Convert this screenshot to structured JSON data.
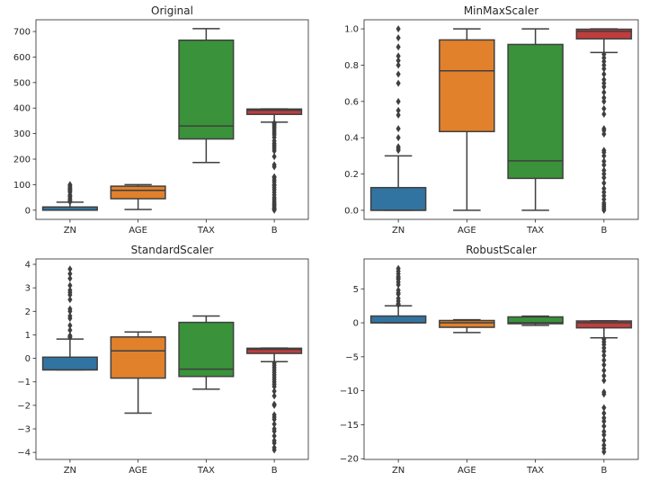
{
  "chart_data": [
    {
      "type": "box",
      "title": "Original",
      "categories": [
        "ZN",
        "AGE",
        "TAX",
        "B"
      ],
      "ylim": [
        -36,
        746
      ],
      "yticks": [
        0,
        100,
        200,
        300,
        400,
        500,
        600,
        700
      ],
      "ytick_labels": [
        "0",
        "100",
        "200",
        "300",
        "400",
        "500",
        "600",
        "700"
      ],
      "grid": false,
      "boxes": [
        {
          "whislo": 0,
          "q1": 0,
          "med": 0,
          "q3": 12.5,
          "whishi": 31.25,
          "outliers": [
            33,
            34,
            35,
            40,
            45,
            52.5,
            55,
            60,
            70,
            75,
            80,
            82.5,
            85,
            90,
            95,
            100
          ]
        },
        {
          "whislo": 2.9,
          "q1": 45,
          "med": 77.5,
          "q3": 94,
          "whishi": 100,
          "outliers": []
        },
        {
          "whislo": 187,
          "q1": 279,
          "med": 330,
          "q3": 666,
          "whishi": 711,
          "outliers": []
        },
        {
          "whislo": 344.9,
          "q1": 375.4,
          "med": 391.4,
          "q3": 396.2,
          "whishi": 396.9,
          "outliers": [
            0.3,
            3.5,
            7,
            10,
            17,
            22,
            28,
            35,
            43,
            50,
            60,
            70,
            80,
            88,
            97,
            100,
            110,
            118,
            127,
            131,
            170,
            178,
            210,
            232,
            240,
            248,
            255,
            262,
            272,
            285,
            295,
            302,
            310,
            318,
            325,
            332,
            338,
            342
          ]
        }
      ]
    },
    {
      "type": "box",
      "title": "MinMaxScaler",
      "categories": [
        "ZN",
        "AGE",
        "TAX",
        "B"
      ],
      "ylim": [
        -0.05,
        1.05
      ],
      "yticks": [
        0,
        0.2,
        0.4,
        0.6,
        0.8,
        1.0
      ],
      "ytick_labels": [
        "0.0",
        "0.2",
        "0.4",
        "0.6",
        "0.8",
        "1.0"
      ],
      "grid": false,
      "boxes": [
        {
          "whislo": 0,
          "q1": 0,
          "med": 0,
          "q3": 0.125,
          "whishi": 0.3,
          "outliers": [
            0.33,
            0.34,
            0.35,
            0.4,
            0.45,
            0.525,
            0.55,
            0.6,
            0.7,
            0.75,
            0.8,
            0.825,
            0.85,
            0.9,
            0.95,
            1.0
          ]
        },
        {
          "whislo": 0,
          "q1": 0.434,
          "med": 0.769,
          "q3": 0.939,
          "whishi": 1.0,
          "outliers": []
        },
        {
          "whislo": 0,
          "q1": 0.176,
          "med": 0.273,
          "q3": 0.914,
          "whishi": 1.0,
          "outliers": []
        },
        {
          "whislo": 0.87,
          "q1": 0.945,
          "med": 0.986,
          "q3": 0.998,
          "whishi": 1.0,
          "outliers": [
            0,
            0.01,
            0.02,
            0.03,
            0.04,
            0.06,
            0.08,
            0.1,
            0.12,
            0.15,
            0.18,
            0.2,
            0.22,
            0.25,
            0.27,
            0.3,
            0.32,
            0.33,
            0.42,
            0.44,
            0.45,
            0.53,
            0.56,
            0.6,
            0.62,
            0.65,
            0.68,
            0.7,
            0.72,
            0.75,
            0.78,
            0.8,
            0.82,
            0.84,
            0.86
          ]
        }
      ]
    },
    {
      "type": "box",
      "title": "StandardScaler",
      "categories": [
        "ZN",
        "AGE",
        "TAX",
        "B"
      ],
      "ylim": [
        -4.3,
        4.23
      ],
      "yticks": [
        -4,
        -3,
        -2,
        -1,
        0,
        1,
        2,
        3,
        4
      ],
      "ytick_labels": [
        "−4",
        "−3",
        "−2",
        "−1",
        "0",
        "1",
        "2",
        "3",
        "4"
      ],
      "grid": false,
      "boxes": [
        {
          "whislo": -0.49,
          "q1": -0.49,
          "med": -0.49,
          "q3": 0.05,
          "whishi": 0.82,
          "outliers": [
            0.89,
            0.93,
            0.97,
            1.2,
            1.4,
            1.7,
            1.8,
            2.0,
            2.1,
            2.5,
            2.7,
            2.8,
            2.9,
            3.1,
            3.4,
            3.6,
            3.8
          ]
        },
        {
          "whislo": -2.33,
          "q1": -0.84,
          "med": 0.32,
          "q3": 0.91,
          "whishi": 1.12,
          "outliers": []
        },
        {
          "whislo": -1.31,
          "q1": -0.77,
          "med": -0.46,
          "q3": 1.53,
          "whishi": 1.8,
          "outliers": []
        },
        {
          "whislo": -0.14,
          "q1": 0.21,
          "med": 0.38,
          "q3": 0.43,
          "whishi": 0.44,
          "outliers": [
            -3.9,
            -3.8,
            -3.6,
            -3.5,
            -3.3,
            -3.1,
            -3.0,
            -2.8,
            -2.6,
            -2.5,
            -2.4,
            -2.0,
            -1.95,
            -1.6,
            -1.4,
            -1.2,
            -1.1,
            -1.0,
            -0.9,
            -0.8,
            -0.7,
            -0.6,
            -0.5,
            -0.4,
            -0.3,
            -0.2
          ]
        }
      ]
    },
    {
      "type": "box",
      "title": "RobustScaler",
      "categories": [
        "ZN",
        "AGE",
        "TAX",
        "B"
      ],
      "ylim": [
        -20.1,
        9.4
      ],
      "yticks": [
        -20,
        -15,
        -10,
        -5,
        0,
        5
      ],
      "ytick_labels": [
        "−20",
        "−15",
        "−10",
        "−5",
        "0",
        "5"
      ],
      "grid": false,
      "boxes": [
        {
          "whislo": 0,
          "q1": 0,
          "med": 0,
          "q3": 1.0,
          "whishi": 2.5,
          "outliers": [
            2.64,
            2.72,
            2.8,
            3.2,
            3.6,
            4.2,
            4.4,
            4.8,
            5.6,
            6.0,
            6.4,
            6.6,
            6.8,
            7.2,
            7.6,
            8.0
          ]
        },
        {
          "whislo": -1.43,
          "q1": -0.66,
          "med": 0,
          "q3": 0.34,
          "whishi": 0.46,
          "outliers": []
        },
        {
          "whislo": -0.37,
          "q1": -0.13,
          "med": 0,
          "q3": 0.87,
          "whishi": 0.98,
          "outliers": []
        },
        {
          "whislo": -2.2,
          "q1": -0.74,
          "med": 0,
          "q3": 0.27,
          "whishi": 0.3,
          "outliers": [
            -19,
            -18.5,
            -18,
            -17.3,
            -16.5,
            -16,
            -15.2,
            -14.5,
            -14,
            -13.3,
            -12.5,
            -10.5,
            -10.2,
            -8.5,
            -7.8,
            -7,
            -6.2,
            -5.5,
            -4.8,
            -4.2,
            -3.7,
            -3.2,
            -2.8,
            -2.4
          ]
        }
      ]
    }
  ],
  "colors": {
    "ZN": "#3274a1",
    "AGE": "#e1812c",
    "TAX": "#3a923a",
    "B": "#c03d3e",
    "lines": "#3f3f3f"
  }
}
